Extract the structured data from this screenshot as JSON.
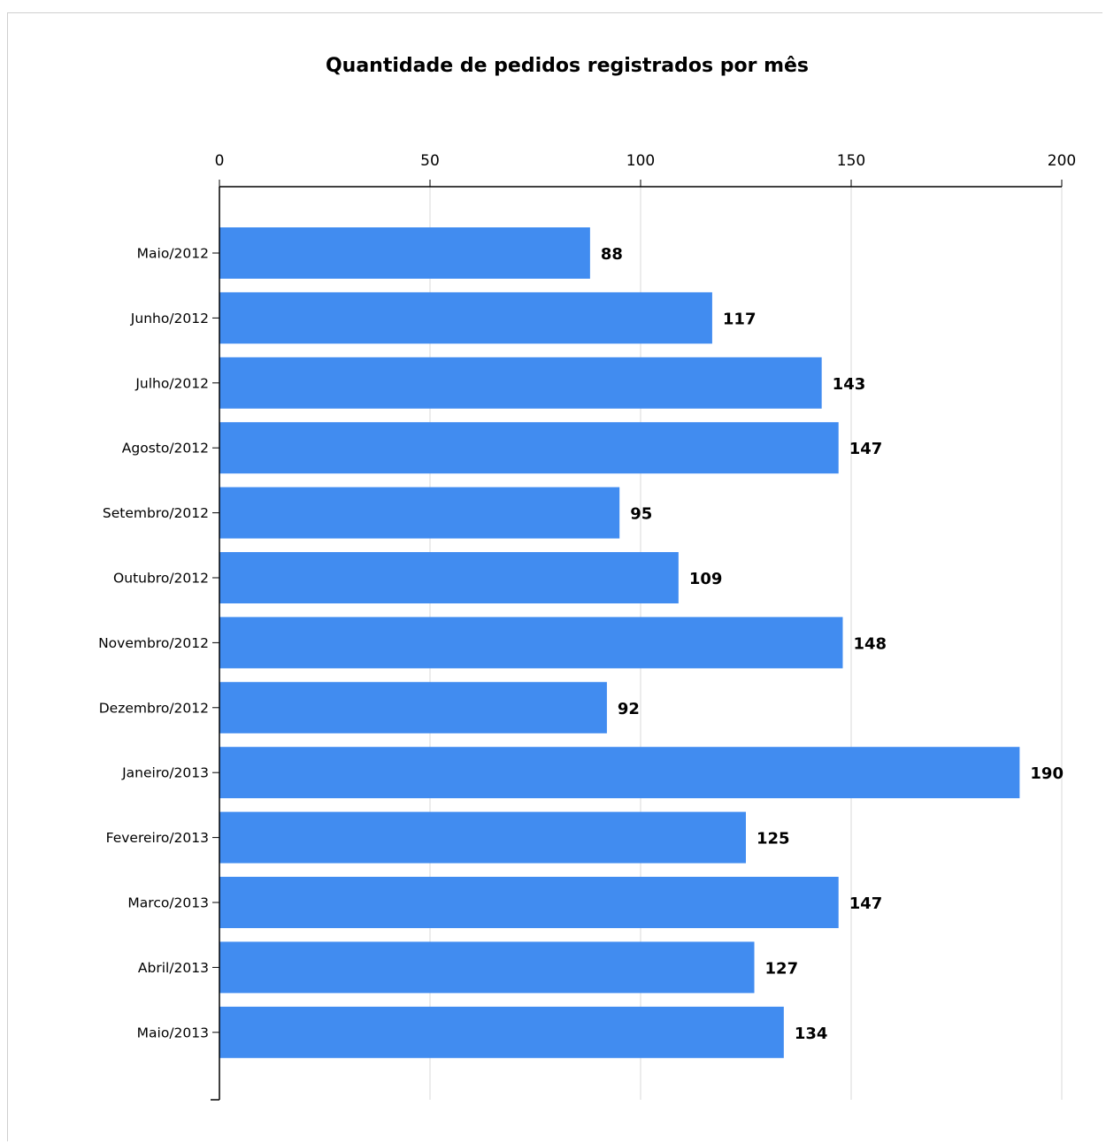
{
  "chart_data": {
    "type": "bar",
    "orientation": "horizontal",
    "title": "Quantidade de pedidos registrados por mês",
    "categories": [
      "Maio/2012",
      "Junho/2012",
      "Julho/2012",
      "Agosto/2012",
      "Setembro/2012",
      "Outubro/2012",
      "Novembro/2012",
      "Dezembro/2012",
      "Janeiro/2013",
      "Fevereiro/2013",
      "Marco/2013",
      "Abril/2013",
      "Maio/2013"
    ],
    "values": [
      88,
      117,
      143,
      147,
      95,
      109,
      148,
      92,
      190,
      125,
      147,
      127,
      134
    ],
    "xlim": [
      0,
      200
    ],
    "xticks": [
      0,
      50,
      100,
      150,
      200
    ],
    "x_axis_position": "top",
    "grid": true,
    "legend": "none",
    "bar_color": "#418cf0",
    "grid_color": "#d9d9d9",
    "xlabel": "",
    "ylabel": ""
  }
}
